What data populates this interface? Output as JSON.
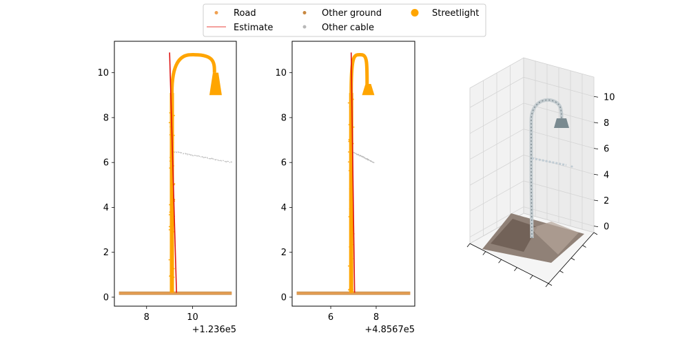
{
  "colors": {
    "road": "#f0a050",
    "estimate": "#e8403a",
    "estimate_line": "#dd1111",
    "other_ground": "#c88840",
    "other_cable": "#b8b8b8",
    "streetlight": "#ffa500",
    "axis": "#000000"
  },
  "legend": {
    "placement": "top-center",
    "entries": [
      {
        "label": "Road",
        "marker": "dot-small",
        "color_key": "road"
      },
      {
        "label": "Estimate",
        "marker": "line",
        "color_key": "estimate"
      },
      {
        "label": "Other ground",
        "marker": "dot-small",
        "color_key": "other_ground"
      },
      {
        "label": "Other cable",
        "marker": "dot-small",
        "color_key": "other_cable"
      },
      {
        "label": "Streetlight",
        "marker": "dot-large",
        "color_key": "streetlight"
      }
    ]
  },
  "chart_data": [
    {
      "type": "scatter",
      "xlim": [
        6.6,
        11.9
      ],
      "ylim": [
        -0.4,
        11.4
      ],
      "xticks": [
        8,
        10
      ],
      "yticks": [
        0,
        2,
        4,
        6,
        8,
        10
      ],
      "xtick_labels": [
        "8",
        "10"
      ],
      "ytick_labels": [
        "0",
        "2",
        "4",
        "6",
        "8",
        "10"
      ],
      "offset_label": "+1.236e5",
      "pole": {
        "x": 9.1,
        "y_range": [
          0.2,
          9.1
        ]
      },
      "arm": {
        "peak_x": 10.1,
        "peak_y": 10.8,
        "end_x": 10.95,
        "lamp_x": 11.0,
        "lamp_y_range": [
          9.0,
          10.0
        ]
      },
      "cable": {
        "x": [
          9.1,
          11.7
        ],
        "y": [
          6.5,
          6.0
        ]
      },
      "ground": {
        "x": [
          6.8,
          11.7
        ],
        "y": [
          0.1,
          0.25
        ]
      },
      "estimate": {
        "x": [
          9.0,
          9.3
        ],
        "y": [
          10.9,
          0.2
        ]
      }
    },
    {
      "type": "scatter",
      "xlim": [
        4.3,
        9.7
      ],
      "ylim": [
        -0.4,
        11.4
      ],
      "xticks": [
        6,
        8
      ],
      "yticks": [
        0,
        2,
        4,
        6,
        8,
        10
      ],
      "xtick_labels": [
        "6",
        "8"
      ],
      "ytick_labels": [
        "0",
        "2",
        "4",
        "6",
        "8",
        "10"
      ],
      "offset_label": "+4.8567e5",
      "pole": {
        "x": 6.9,
        "y_range": [
          0.2,
          9.1
        ]
      },
      "arm": {
        "peak_x": 7.35,
        "peak_y": 10.8,
        "end_x": 7.6,
        "lamp_x": 7.65,
        "lamp_y_range": [
          9.0,
          9.5
        ]
      },
      "cable": {
        "x": [
          6.9,
          7.9
        ],
        "y": [
          6.5,
          6.0
        ]
      },
      "ground": {
        "x": [
          4.5,
          9.5
        ],
        "y": [
          0.1,
          0.25
        ]
      },
      "estimate": {
        "x": [
          6.9,
          7.05
        ],
        "y": [
          10.9,
          0.2
        ]
      }
    },
    {
      "type": "scatter3d",
      "zlim": [
        -0.5,
        11.5
      ],
      "zticks": [
        0,
        2,
        4,
        6,
        8,
        10
      ],
      "ztick_labels": [
        "0",
        "2",
        "4",
        "6",
        "8",
        "10"
      ]
    }
  ]
}
